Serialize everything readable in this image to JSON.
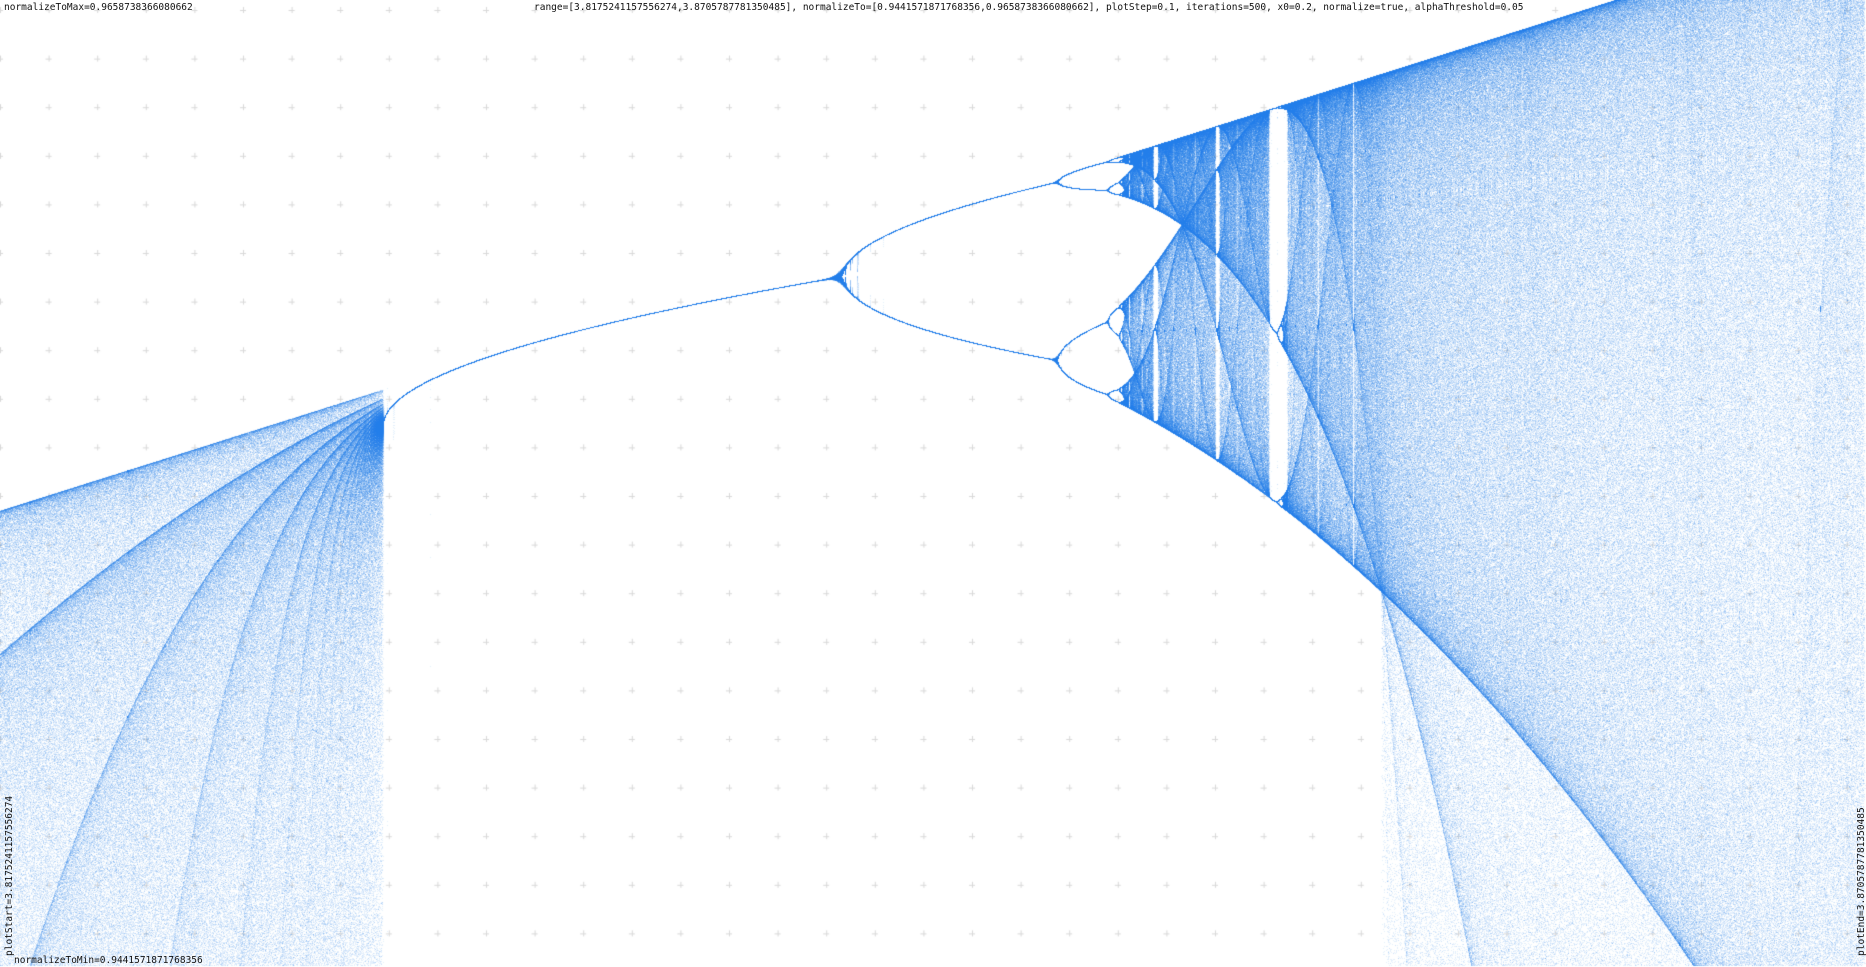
{
  "labels": {
    "normalize_to_max": "normalizeToMax=0.9658738366080662",
    "params": "range=[3.8175241157556274,3.8705787781350485], normalizeTo=[0.9441571871768356,0.9658738366080662], plotStep=0.1, iterations=500, x0=0.2, normalize=true, alphaThreshold=0.05",
    "normalize_to_min": "normalizeToMin=0.9441571871768356",
    "plot_start": "plotStart=3.8175241157556274",
    "plot_end": "plotEnd=3.8705787781350485"
  },
  "chart_data": {
    "type": "scatter",
    "function": "logistic map x(n+1) = r * x(n) * (1 - x(n))",
    "xlim": [
      3.8175241157556274,
      3.8705787781350485
    ],
    "ylim": [
      0.9441571871768356,
      0.9658738366080662
    ],
    "plotStep": 0.1,
    "iterations": 500,
    "x0": 0.2,
    "normalize": true,
    "alphaThreshold": 0.05,
    "grid": true,
    "colors": {
      "points": "#1e7ae6",
      "grid": "#d9d9d9",
      "background": "#ffffff"
    }
  }
}
